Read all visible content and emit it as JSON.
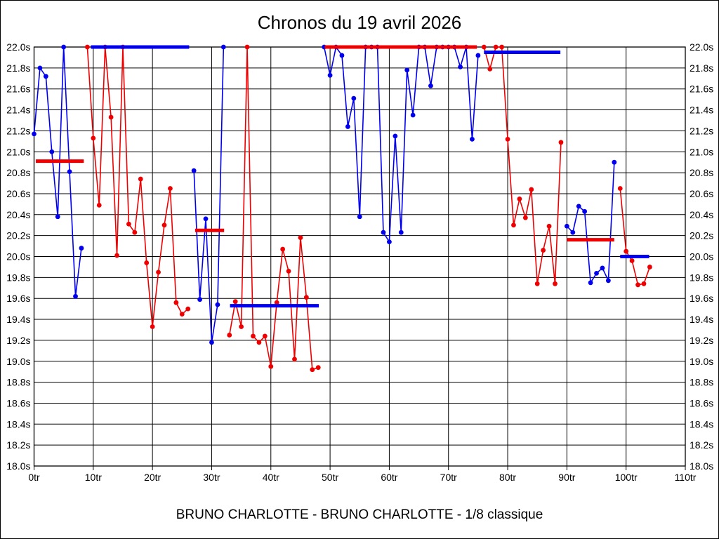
{
  "title": "Chronos du 19 avril 2026",
  "subtitle": "BRUNO CHARLOTTE - BRUNO CHARLOTTE - 1/8 classique",
  "chart_data": {
    "type": "line",
    "title": "Chronos du 19 avril 2026",
    "subtitle": "BRUNO CHARLOTTE - BRUNO CHARLOTTE - 1/8 classique",
    "x_unit": "tr",
    "y_unit": "s",
    "xlim": [
      0,
      110
    ],
    "ylim": [
      18.0,
      22.0
    ],
    "y_tick_step": 0.2,
    "x_tick_step": 10,
    "grid": true,
    "legend": "none",
    "x_tick_labels": [
      "0tr",
      "10tr",
      "20tr",
      "30tr",
      "40tr",
      "50tr",
      "60tr",
      "70tr",
      "80tr",
      "90tr",
      "100tr",
      "110tr"
    ],
    "y_tick_labels": [
      "22.0s",
      "21.8s",
      "21.6s",
      "21.4s",
      "21.2s",
      "21.0s",
      "20.8s",
      "20.6s",
      "20.4s",
      "20.2s",
      "20.0s",
      "19.8s",
      "19.6s",
      "19.4s",
      "19.2s",
      "19.0s",
      "18.8s",
      "18.6s",
      "18.4s",
      "18.2s",
      "18.0s"
    ],
    "series": [
      {
        "name": "driver-1-blue",
        "color": "#0000ee",
        "stints": [
          {
            "start_lap": 0,
            "values": [
              21.17,
              21.8,
              21.72,
              21.0,
              20.38,
              22.0,
              20.81,
              19.62,
              20.08
            ]
          },
          {
            "start_lap": 27,
            "values": [
              20.82,
              19.59,
              20.36,
              19.18,
              19.54,
              22.0
            ]
          },
          {
            "start_lap": 49,
            "values": [
              22.0,
              21.73,
              22.0,
              21.92,
              21.24,
              21.51,
              20.38,
              22.0,
              22.0,
              22.0,
              20.23,
              20.14,
              21.15,
              20.23,
              21.78,
              21.35,
              22.0,
              22.0,
              21.63,
              22.0,
              22.0,
              22.0,
              22.0,
              21.81,
              22.0,
              21.12,
              21.92
            ]
          },
          {
            "start_lap": 90,
            "values": [
              20.29,
              20.23,
              20.48,
              20.43,
              19.75,
              19.84,
              19.89,
              19.77,
              20.9
            ]
          }
        ]
      },
      {
        "name": "driver-2-red",
        "color": "#ee0000",
        "stints": [
          {
            "start_lap": 9,
            "values": [
              22.0,
              21.13,
              20.49,
              22.0,
              21.33,
              20.01,
              22.0,
              20.31,
              20.23,
              20.74,
              19.94,
              19.33,
              19.85,
              20.3,
              20.65,
              19.56,
              19.45,
              19.5
            ]
          },
          {
            "start_lap": 33,
            "values": [
              19.25,
              19.57,
              19.33,
              22.0,
              19.24,
              19.18,
              19.24,
              18.95,
              19.56,
              20.07,
              19.86,
              19.02,
              20.18,
              19.61,
              18.92,
              18.94
            ]
          },
          {
            "start_lap": 76,
            "values": [
              22.0,
              21.79,
              22.0,
              22.0,
              21.12,
              20.3,
              20.55,
              20.37,
              20.64,
              19.74,
              20.06,
              20.29,
              19.74,
              21.09
            ]
          },
          {
            "start_lap": 99,
            "values": [
              20.65,
              20.05,
              19.96,
              19.73,
              19.74,
              19.9
            ]
          }
        ]
      }
    ],
    "average_segments": [
      {
        "color": "#ee0000",
        "value": 20.91,
        "from_lap": 0.3,
        "to_lap": 8.4
      },
      {
        "color": "#0000ee",
        "value": 22.0,
        "from_lap": 9.6,
        "to_lap": 26.2
      },
      {
        "color": "#ee0000",
        "value": 20.25,
        "from_lap": 27.2,
        "to_lap": 32.1
      },
      {
        "color": "#0000ee",
        "value": 19.53,
        "from_lap": 33.1,
        "to_lap": 48.1
      },
      {
        "color": "#ee0000",
        "value": 22.0,
        "from_lap": 49.1,
        "to_lap": 74.8
      },
      {
        "color": "#0000ee",
        "value": 21.95,
        "from_lap": 76.0,
        "to_lap": 88.9
      },
      {
        "color": "#ee0000",
        "value": 20.16,
        "from_lap": 90.0,
        "to_lap": 98.0
      },
      {
        "color": "#0000ee",
        "value": 20.0,
        "from_lap": 99.0,
        "to_lap": 103.9
      }
    ]
  }
}
